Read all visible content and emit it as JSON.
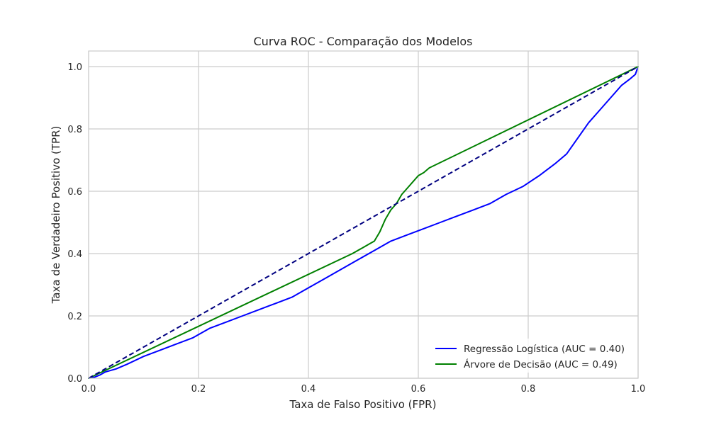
{
  "chart_data": {
    "type": "line",
    "title": "Curva ROC - Comparação dos Modelos",
    "xlabel": "Taxa de Falso Positivo (FPR)",
    "ylabel": "Taxa de Verdadeiro Positivo (TPR)",
    "xlim": [
      0,
      1
    ],
    "ylim": [
      0,
      1.05
    ],
    "xticks": [
      "0.0",
      "0.2",
      "0.4",
      "0.6",
      "0.8",
      "1.0"
    ],
    "yticks": [
      "0.0",
      "0.2",
      "0.4",
      "0.6",
      "0.8",
      "1.0"
    ],
    "grid": true,
    "legend_position": "lower-right",
    "series": [
      {
        "name": "Regressão Logística (AUC = 0.40)",
        "color": "#0000ff",
        "style": "solid",
        "x": [
          0,
          0.01,
          0.02,
          0.03,
          0.05,
          0.07,
          0.1,
          0.13,
          0.16,
          0.19,
          0.22,
          0.25,
          0.28,
          0.31,
          0.34,
          0.37,
          0.4,
          0.43,
          0.46,
          0.49,
          0.52,
          0.55,
          0.58,
          0.61,
          0.64,
          0.67,
          0.7,
          0.73,
          0.76,
          0.79,
          0.82,
          0.85,
          0.87,
          0.89,
          0.91,
          0.93,
          0.95,
          0.97,
          0.985,
          0.995,
          1.0
        ],
        "y": [
          0,
          0.003,
          0.01,
          0.02,
          0.03,
          0.045,
          0.07,
          0.09,
          0.11,
          0.13,
          0.16,
          0.18,
          0.2,
          0.22,
          0.24,
          0.26,
          0.29,
          0.32,
          0.35,
          0.38,
          0.41,
          0.44,
          0.46,
          0.48,
          0.5,
          0.52,
          0.54,
          0.56,
          0.59,
          0.615,
          0.65,
          0.69,
          0.72,
          0.77,
          0.82,
          0.86,
          0.9,
          0.94,
          0.96,
          0.975,
          1.0
        ]
      },
      {
        "name": "Árvore de Decisão (AUC = 0.49)",
        "color": "#008000",
        "style": "solid",
        "x": [
          0,
          0.48,
          0.5,
          0.51,
          0.52,
          0.53,
          0.54,
          0.55,
          0.56,
          0.57,
          0.58,
          0.59,
          0.6,
          0.61,
          0.62,
          1.0
        ],
        "y": [
          0,
          0.4,
          0.42,
          0.43,
          0.44,
          0.47,
          0.51,
          0.54,
          0.56,
          0.59,
          0.61,
          0.63,
          0.65,
          0.66,
          0.675,
          1.0
        ]
      },
      {
        "name": "",
        "color": "#000080",
        "style": "dashed",
        "x": [
          0,
          1
        ],
        "y": [
          0,
          1
        ]
      }
    ]
  }
}
